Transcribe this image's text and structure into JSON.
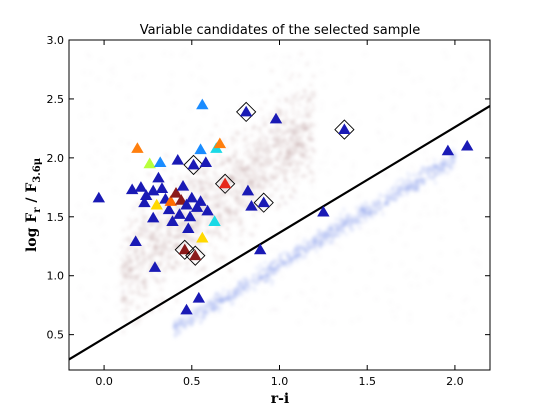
{
  "chart_data": {
    "type": "scatter",
    "title": "Variable candidates of the selected sample",
    "xlabel": "r-i",
    "ylabel": "log F",
    "ylabel_r": "r",
    "ylabel_mid": " / F",
    "ylabel_36": "3.6",
    "ylabel_mu": "μ",
    "xlim": [
      -0.2,
      2.2
    ],
    "ylim": [
      0.2,
      3.0
    ],
    "xticks": [
      0.0,
      0.5,
      1.0,
      1.5,
      2.0
    ],
    "xtick_labels": [
      "0.0",
      "0.5",
      "1.0",
      "1.5",
      "2.0"
    ],
    "yticks": [
      0.5,
      1.0,
      1.5,
      2.0,
      2.5,
      3.0
    ],
    "ytick_labels": [
      "0.5",
      "1.0",
      "1.5",
      "2.0",
      "2.5",
      "3.0"
    ],
    "grid": false,
    "background_density": [
      {
        "name": "main-cloud",
        "color": "#a06d6a",
        "x_range": [
          0.1,
          1.2
        ],
        "y_center": [
          1.4,
          2.6
        ],
        "spread": 0.22
      },
      {
        "name": "lower-sequence",
        "color": "#8a9ee8",
        "x_range": [
          0.4,
          2.0
        ],
        "y_line": [
          0.55,
          2.0
        ],
        "spread": 0.04
      }
    ],
    "line": {
      "color": "#000000",
      "x": [
        -0.2,
        2.2
      ],
      "y": [
        0.29,
        2.44
      ]
    },
    "points": [
      {
        "x": -0.03,
        "y": 1.66,
        "color": "#1a1ab5",
        "diamond": false
      },
      {
        "x": 0.16,
        "y": 1.73,
        "color": "#1a1ab5",
        "diamond": false
      },
      {
        "x": 0.18,
        "y": 1.29,
        "color": "#1a1ab5",
        "diamond": false
      },
      {
        "x": 0.19,
        "y": 2.08,
        "color": "#ff7f0e",
        "diamond": false
      },
      {
        "x": 0.21,
        "y": 1.75,
        "color": "#1a1ab5",
        "diamond": false
      },
      {
        "x": 0.23,
        "y": 1.62,
        "color": "#1a1ab5",
        "diamond": false
      },
      {
        "x": 0.24,
        "y": 1.68,
        "color": "#1a1ab5",
        "diamond": false
      },
      {
        "x": 0.26,
        "y": 1.95,
        "color": "#b8ff3c",
        "diamond": false
      },
      {
        "x": 0.28,
        "y": 1.72,
        "color": "#1a1ab5",
        "diamond": false
      },
      {
        "x": 0.28,
        "y": 1.49,
        "color": "#1a1ab5",
        "diamond": false
      },
      {
        "x": 0.29,
        "y": 1.07,
        "color": "#1a1ab5",
        "diamond": false
      },
      {
        "x": 0.3,
        "y": 1.6,
        "color": "#ffd800",
        "diamond": false
      },
      {
        "x": 0.31,
        "y": 1.83,
        "color": "#1a1ab5",
        "diamond": false
      },
      {
        "x": 0.32,
        "y": 1.96,
        "color": "#1a8cff",
        "diamond": false
      },
      {
        "x": 0.33,
        "y": 1.74,
        "color": "#1a1ab5",
        "diamond": false
      },
      {
        "x": 0.35,
        "y": 1.65,
        "color": "#1a1ab5",
        "diamond": false
      },
      {
        "x": 0.37,
        "y": 1.56,
        "color": "#1a1ab5",
        "diamond": false
      },
      {
        "x": 0.38,
        "y": 1.63,
        "color": "#ff6a00",
        "diamond": false
      },
      {
        "x": 0.39,
        "y": 1.46,
        "color": "#1a1ab5",
        "diamond": false
      },
      {
        "x": 0.41,
        "y": 1.7,
        "color": "#8b1a1a",
        "diamond": false
      },
      {
        "x": 0.42,
        "y": 1.98,
        "color": "#1a1ab5",
        "diamond": false
      },
      {
        "x": 0.43,
        "y": 1.52,
        "color": "#1a1ab5",
        "diamond": false
      },
      {
        "x": 0.44,
        "y": 1.64,
        "color": "#8b1a1a",
        "diamond": false
      },
      {
        "x": 0.45,
        "y": 1.76,
        "color": "#1a1ab5",
        "diamond": false
      },
      {
        "x": 0.46,
        "y": 1.22,
        "color": "#8b1a1a",
        "diamond": true
      },
      {
        "x": 0.47,
        "y": 1.6,
        "color": "#1a1ab5",
        "diamond": false
      },
      {
        "x": 0.47,
        "y": 0.71,
        "color": "#1a1ab5",
        "diamond": false
      },
      {
        "x": 0.48,
        "y": 1.4,
        "color": "#1a1ab5",
        "diamond": false
      },
      {
        "x": 0.49,
        "y": 1.5,
        "color": "#1a1ab5",
        "diamond": false
      },
      {
        "x": 0.5,
        "y": 1.66,
        "color": "#1a1ab5",
        "diamond": false
      },
      {
        "x": 0.51,
        "y": 1.94,
        "color": "#1a1ab5",
        "diamond": true
      },
      {
        "x": 0.52,
        "y": 1.17,
        "color": "#8b1a1a",
        "diamond": true
      },
      {
        "x": 0.53,
        "y": 1.58,
        "color": "#1a1ab5",
        "diamond": false
      },
      {
        "x": 0.54,
        "y": 0.81,
        "color": "#1a1ab5",
        "diamond": false
      },
      {
        "x": 0.55,
        "y": 2.07,
        "color": "#1a8cff",
        "diamond": false
      },
      {
        "x": 0.55,
        "y": 1.63,
        "color": "#1a1ab5",
        "diamond": false
      },
      {
        "x": 0.56,
        "y": 1.32,
        "color": "#ffd800",
        "diamond": false
      },
      {
        "x": 0.56,
        "y": 2.45,
        "color": "#1a8cff",
        "diamond": false
      },
      {
        "x": 0.58,
        "y": 1.96,
        "color": "#1a1ab5",
        "diamond": false
      },
      {
        "x": 0.59,
        "y": 1.55,
        "color": "#1a1ab5",
        "diamond": false
      },
      {
        "x": 0.63,
        "y": 1.46,
        "color": "#1ad9e6",
        "diamond": false
      },
      {
        "x": 0.64,
        "y": 2.08,
        "color": "#1ad9e6",
        "diamond": false
      },
      {
        "x": 0.66,
        "y": 2.12,
        "color": "#ff7f0e",
        "diamond": false
      },
      {
        "x": 0.69,
        "y": 1.78,
        "color": "#e6261a",
        "diamond": true
      },
      {
        "x": 0.81,
        "y": 2.39,
        "color": "#1a1ab5",
        "diamond": true
      },
      {
        "x": 0.82,
        "y": 1.72,
        "color": "#1a1ab5",
        "diamond": false
      },
      {
        "x": 0.84,
        "y": 1.59,
        "color": "#1a1ab5",
        "diamond": false
      },
      {
        "x": 0.89,
        "y": 1.22,
        "color": "#1a1ab5",
        "diamond": false
      },
      {
        "x": 0.91,
        "y": 1.62,
        "color": "#1a1ab5",
        "diamond": true
      },
      {
        "x": 0.98,
        "y": 2.33,
        "color": "#1a1ab5",
        "diamond": false
      },
      {
        "x": 1.25,
        "y": 1.54,
        "color": "#1a1ab5",
        "diamond": false
      },
      {
        "x": 1.37,
        "y": 2.24,
        "color": "#1a1ab5",
        "diamond": true
      },
      {
        "x": 1.96,
        "y": 2.06,
        "color": "#1a1ab5",
        "diamond": false
      },
      {
        "x": 2.07,
        "y": 2.1,
        "color": "#1a1ab5",
        "diamond": false
      }
    ]
  }
}
